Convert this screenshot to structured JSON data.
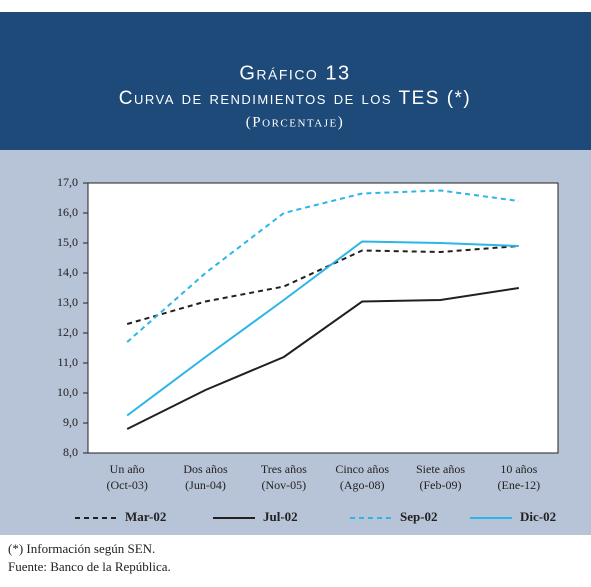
{
  "chart_data": {
    "type": "line",
    "title": "Gráfico 13",
    "subtitle": "Curva de rendimientos de los TES (*)",
    "unit_note": "(Porcentaje)",
    "categories": [
      "Un año",
      "Dos años",
      "Tres años",
      "Cinco años",
      "Siete años",
      "10 años"
    ],
    "category_periods": [
      "(Oct-03)",
      "(Jun-04)",
      "(Nov-05)",
      "(Ago-08)",
      "(Feb-09)",
      "(Ene-12)"
    ],
    "series": [
      {
        "name": "Mar-02",
        "color": "#231f20",
        "style": "dashed",
        "values": [
          12.3,
          13.05,
          13.55,
          14.75,
          14.7,
          14.9
        ]
      },
      {
        "name": "Jul-02",
        "color": "#231f20",
        "style": "solid",
        "values": [
          8.8,
          10.1,
          11.2,
          13.05,
          13.1,
          13.5
        ]
      },
      {
        "name": "Sep-02",
        "color": "#2bb5e8",
        "style": "dashed",
        "values": [
          11.7,
          14.0,
          16.0,
          16.65,
          16.75,
          16.4
        ]
      },
      {
        "name": "Dic-02",
        "color": "#2bb5e8",
        "style": "solid",
        "values": [
          9.25,
          11.2,
          13.1,
          15.05,
          15.0,
          14.9
        ]
      }
    ],
    "ylim": [
      8,
      17
    ],
    "yticks": [
      {
        "value": 8,
        "label": "8,0"
      },
      {
        "value": 9,
        "label": "9,0"
      },
      {
        "value": 10,
        "label": "10,0"
      },
      {
        "value": 11,
        "label": "11,0"
      },
      {
        "value": 12,
        "label": "12,0"
      },
      {
        "value": 13,
        "label": "13,0"
      },
      {
        "value": 14,
        "label": "14,0"
      },
      {
        "value": 15,
        "label": "15,0"
      },
      {
        "value": 16,
        "label": "16,0"
      },
      {
        "value": 17,
        "label": "17,0"
      }
    ],
    "legend": "bottom",
    "notes": [
      "(*) Información según SEN.",
      "Fuente: Banco de la República."
    ]
  }
}
